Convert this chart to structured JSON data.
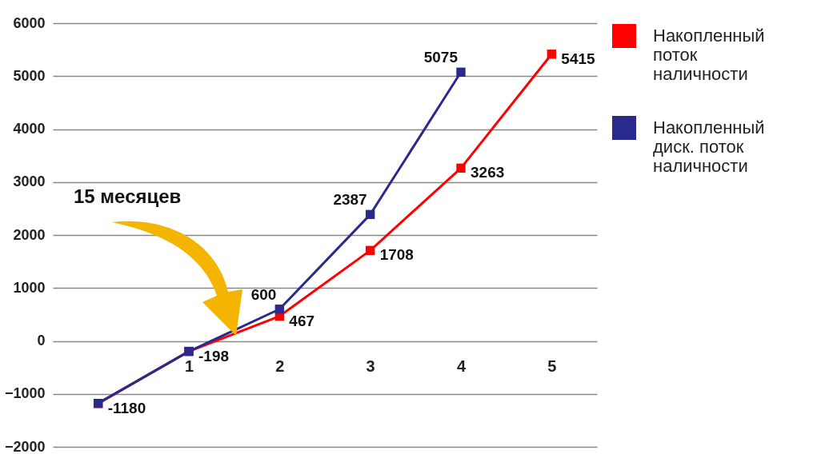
{
  "chart_data": {
    "type": "line",
    "categories": [
      null,
      "1",
      "2",
      "3",
      "4",
      "5"
    ],
    "series": [
      {
        "name": "Накопленный поток наличности",
        "color": "#ff0000",
        "values": [
          -1180,
          -198,
          467,
          1708,
          3263,
          5415
        ],
        "value_labels": [
          "-1180",
          "-198",
          "467",
          "1708",
          "3263",
          "5415"
        ]
      },
      {
        "name": "Накопленный диск. поток наличности",
        "color": "#2a2a8c",
        "values": [
          -1180,
          -198,
          600,
          2387,
          5075,
          null
        ],
        "value_labels": [
          null,
          null,
          "600",
          "2387",
          "5075",
          null
        ]
      }
    ],
    "ylim": [
      -2000,
      6000
    ],
    "yticks": [
      -2000,
      -1000,
      0,
      1000,
      2000,
      3000,
      4000,
      5000,
      6000
    ],
    "grid": "y",
    "legend": "right",
    "marker": "square",
    "line_style": "solid",
    "annotations": [
      "15 месяцев"
    ]
  }
}
